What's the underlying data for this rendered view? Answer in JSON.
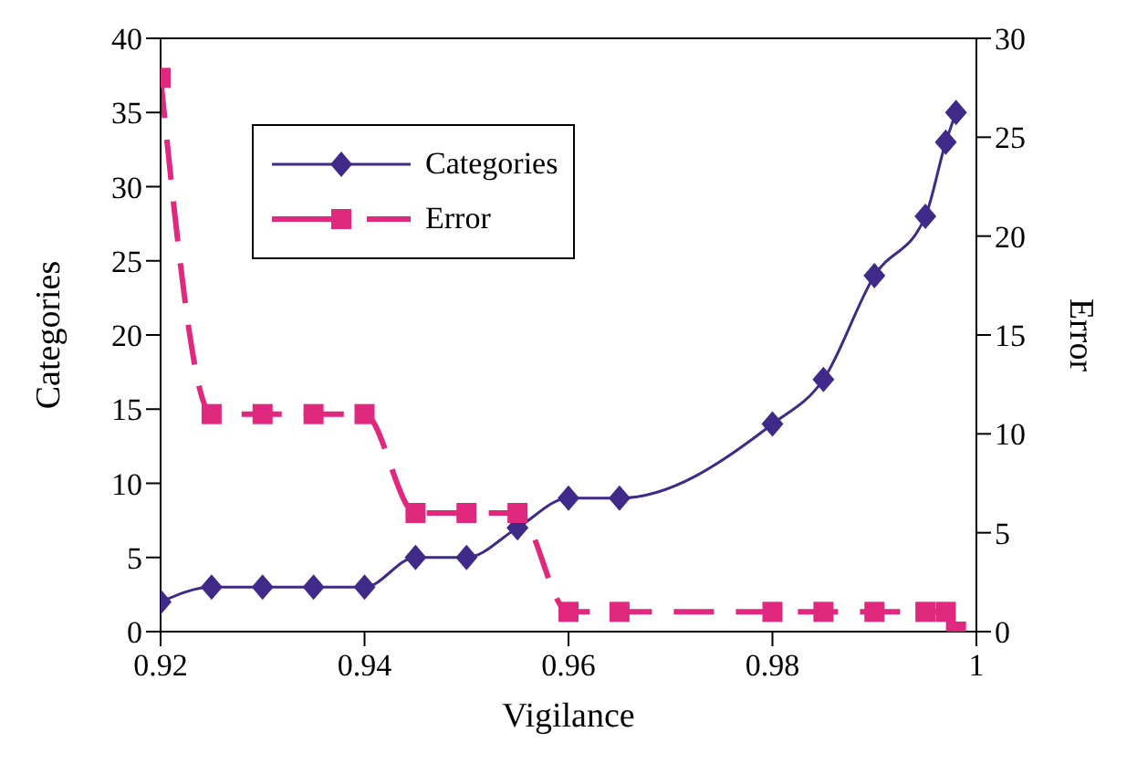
{
  "chart_data": {
    "type": "line",
    "xlabel": "Vigilance",
    "ylabel": "Categories",
    "y2label": "Error",
    "x": [
      0.92,
      0.925,
      0.93,
      0.935,
      0.94,
      0.945,
      0.95,
      0.955,
      0.96,
      0.965,
      0.98,
      0.985,
      0.99,
      0.995,
      0.997,
      0.998
    ],
    "xlim": [
      0.92,
      1
    ],
    "xticks": [
      0.92,
      0.94,
      0.96,
      0.98,
      1
    ],
    "ylim": [
      0,
      40
    ],
    "yticks": [
      0,
      5,
      10,
      15,
      20,
      25,
      30,
      35,
      40
    ],
    "y2lim": [
      0,
      30
    ],
    "y2ticks": [
      0,
      5,
      10,
      15,
      20,
      25,
      30
    ],
    "series": [
      {
        "name": "Categories",
        "color": "#3f2a8a",
        "marker": "diamond",
        "line_style": "solid",
        "values": [
          2,
          3,
          3,
          3,
          3,
          5,
          5,
          7,
          9,
          9,
          14,
          17,
          24,
          28,
          33,
          35
        ]
      },
      {
        "name": "Error",
        "color": "#e0287f",
        "marker": "square",
        "line_style": "dashed",
        "axis": "y2",
        "values": [
          28,
          11,
          11,
          11,
          11,
          6,
          6,
          6,
          1,
          1,
          1,
          1,
          1,
          1,
          1,
          0
        ]
      }
    ],
    "legend": "top",
    "grid": false
  }
}
